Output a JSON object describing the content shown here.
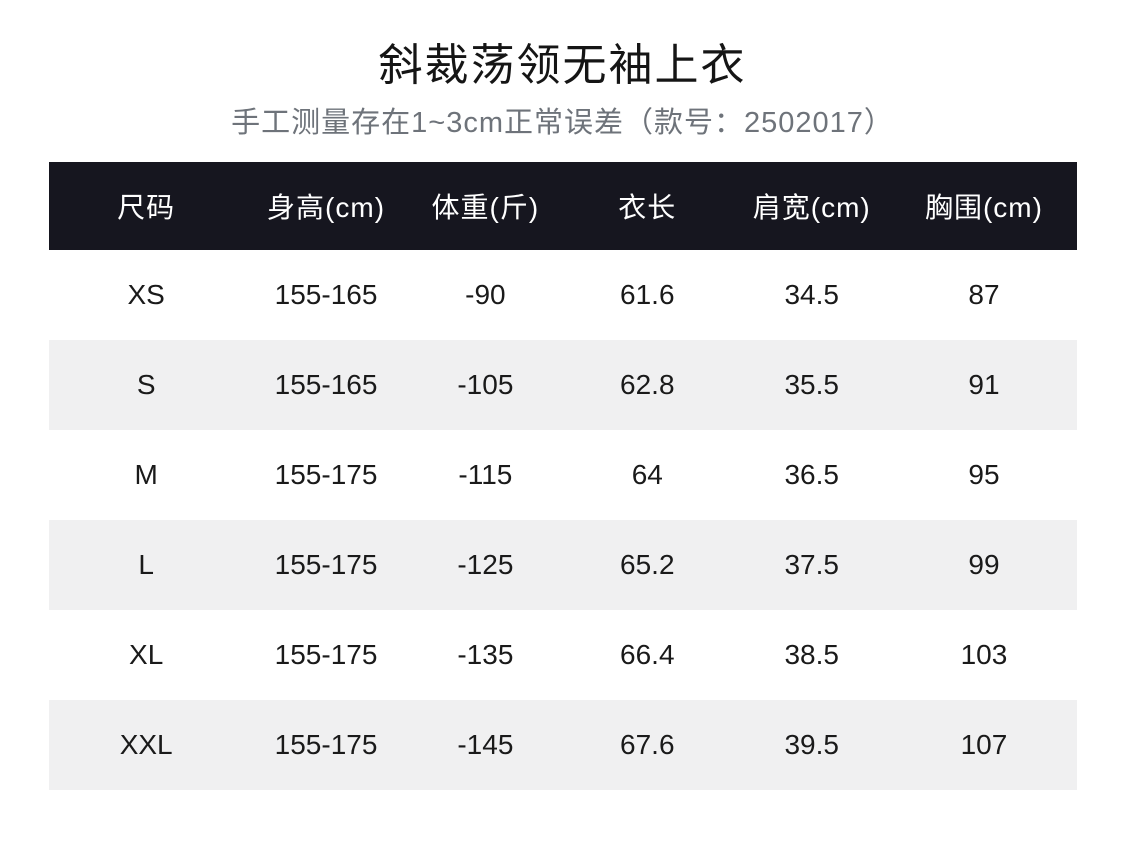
{
  "header": {
    "title": "斜裁荡领无袖上衣",
    "subtitle": "手工测量存在1~3cm正常误差（款号：2502017）",
    "model_number": "2502017"
  },
  "table": {
    "headers": [
      "尺码",
      "身高(cm)",
      "体重(斤)",
      "衣长",
      "肩宽(cm)",
      "胸围(cm)"
    ],
    "rows": [
      [
        "XS",
        "155-165",
        "-90",
        "61.6",
        "34.5",
        "87"
      ],
      [
        "S",
        "155-165",
        "-105",
        "62.8",
        "35.5",
        "91"
      ],
      [
        "M",
        "155-175",
        "-115",
        "64",
        "36.5",
        "95"
      ],
      [
        "L",
        "155-175",
        "-125",
        "65.2",
        "37.5",
        "99"
      ],
      [
        "XL",
        "155-175",
        "-135",
        "66.4",
        "38.5",
        "103"
      ],
      [
        "XXL",
        "155-175",
        "-145",
        "67.6",
        "39.5",
        "107"
      ]
    ]
  },
  "colors": {
    "header_bg": "#16161f",
    "header_text": "#ffffff",
    "row_bg": "#ffffff",
    "alt_row_bg": "#f0f0f1",
    "body_text": "#1a1a1a",
    "subtitle_text": "#6e737a",
    "title_text": "#151515",
    "page_bg": "#ffffff"
  }
}
